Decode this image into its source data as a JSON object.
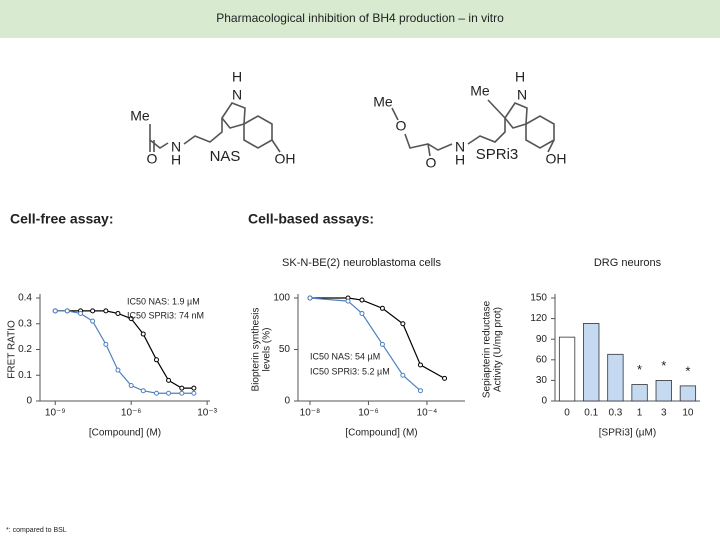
{
  "header": {
    "title": "Pharmacological inhibition of BH4 production – in vitro"
  },
  "sections": [
    "Cell-free assay:",
    "Cell-based assays:"
  ],
  "footnote": "*: compared to BSL",
  "structures": [
    {
      "label": "NAS",
      "atoms": [
        "Me",
        "O",
        "N",
        "H",
        "N",
        "H",
        "OH"
      ]
    },
    {
      "label": "SPRi3",
      "atoms": [
        "Me",
        "O",
        "O",
        "N",
        "H",
        "Me",
        "N",
        "H",
        "OH"
      ]
    }
  ],
  "chart_data": [
    {
      "type": "line",
      "xscale": "log",
      "xlabel": "[Compound] (M)",
      "ylabel": [
        "FRET RATIO"
      ],
      "xlim": [
        2.5e-10,
        0.0013
      ],
      "ylim": [
        0,
        0.4
      ],
      "xticks": [
        {
          "value": 1e-09,
          "label": "10⁻⁹"
        },
        {
          "value": 1e-06,
          "label": "10⁻⁶"
        },
        {
          "value": 0.001,
          "label": "10⁻³"
        }
      ],
      "yticks": [
        0,
        0.1,
        0.2,
        0.3,
        0.4
      ],
      "series": [
        {
          "name": "NAS",
          "color": "#000000",
          "x": [
            1e-09,
            3e-09,
            1e-08,
            3e-08,
            1e-07,
            3e-07,
            1e-06,
            3e-06,
            1e-05,
            3e-05,
            0.0001,
            0.0003
          ],
          "values": [
            0.35,
            0.35,
            0.35,
            0.35,
            0.35,
            0.34,
            0.32,
            0.26,
            0.16,
            0.08,
            0.05,
            0.05
          ]
        },
        {
          "name": "SPRi3",
          "color": "#4f81bd",
          "x": [
            1e-09,
            3e-09,
            1e-08,
            3e-08,
            1e-07,
            3e-07,
            1e-06,
            3e-06,
            1e-05,
            3e-05,
            0.0001,
            0.0003
          ],
          "values": [
            0.35,
            0.35,
            0.34,
            0.31,
            0.22,
            0.12,
            0.06,
            0.04,
            0.03,
            0.03,
            0.03,
            0.03
          ]
        }
      ],
      "annotations": [
        "IC50 NAS: 1.9 µM",
        "IC50 SPRi3: 74 nM"
      ]
    },
    {
      "type": "line",
      "xscale": "log",
      "title": "SK-N-BE(2) neuroblastoma cells",
      "xlabel": "[Compound] (M)",
      "ylabel": [
        "Biopterin synthesis",
        "levels (%)"
      ],
      "xlim": [
        3.9e-09,
        0.002
      ],
      "ylim": [
        0,
        100
      ],
      "xticks": [
        {
          "value": 1e-08,
          "label": "10⁻⁸"
        },
        {
          "value": 1e-06,
          "label": "10⁻⁶"
        },
        {
          "value": 0.0001,
          "label": "10⁻⁴"
        }
      ],
      "yticks": [
        0,
        50,
        100
      ],
      "series": [
        {
          "name": "NAS",
          "color": "#000000",
          "x": [
            1e-08,
            2e-07,
            6e-07,
            3e-06,
            1.5e-05,
            6e-05,
            0.0004
          ],
          "values": [
            100,
            100,
            98,
            90,
            75,
            35,
            22
          ]
        },
        {
          "name": "SPRi3",
          "color": "#4f81bd",
          "x": [
            1e-08,
            2e-07,
            6e-07,
            3e-06,
            1.5e-05,
            6e-05
          ],
          "values": [
            100,
            97,
            85,
            55,
            25,
            10
          ]
        }
      ],
      "annotations": [
        "IC50 NAS: 54 µM",
        "IC50 SPRi3: 5.2 µM"
      ]
    },
    {
      "type": "bar",
      "title": "DRG neurons",
      "xlabel": "[SPRi3] (µM)",
      "ylabel": [
        "Sepiapterin reductase",
        "Activity (U/mg prot)"
      ],
      "categories": [
        "0",
        "0.1",
        "0.3",
        "1",
        "3",
        "10"
      ],
      "values": [
        93,
        113,
        68,
        24,
        30,
        22
      ],
      "colors": [
        "#ffffff",
        "#c5d9f1",
        "#c5d9f1",
        "#c5d9f1",
        "#c5d9f1",
        "#c5d9f1"
      ],
      "significance": [
        null,
        null,
        null,
        "*",
        "*",
        "*"
      ],
      "ylim": [
        0,
        150
      ],
      "yticks": [
        0,
        30,
        60,
        90,
        120,
        150
      ]
    }
  ]
}
